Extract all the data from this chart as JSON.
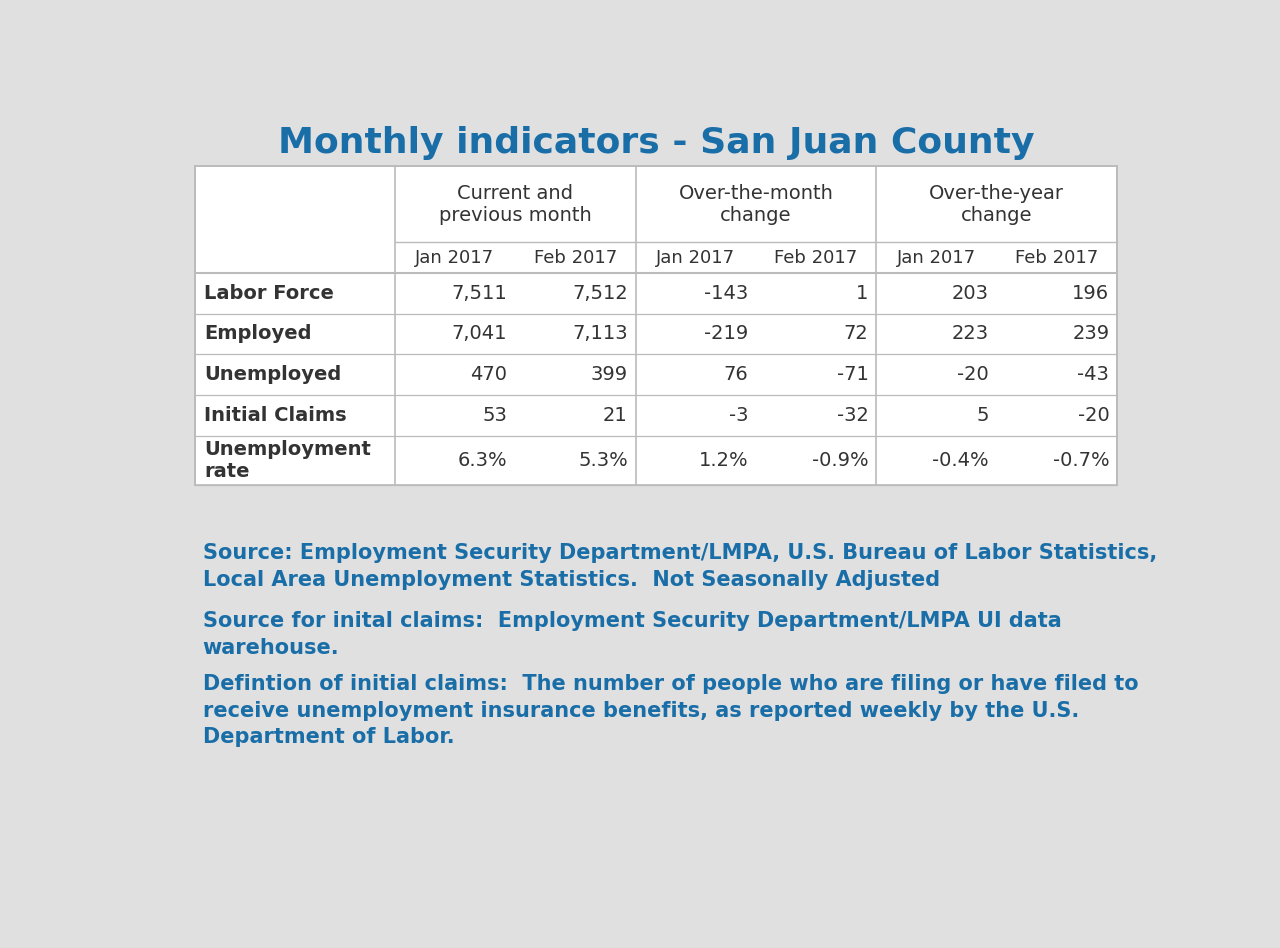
{
  "title": "Monthly indicators - San Juan County",
  "title_color": "#1A6EA8",
  "background_color": "#E0E0E0",
  "col_groups": [
    "Current and\nprevious month",
    "Over-the-month\nchange",
    "Over-the-year\nchange"
  ],
  "col_subheaders": [
    "Jan 2017",
    "Feb 2017",
    "Jan 2017",
    "Feb 2017",
    "Jan 2017",
    "Feb 2017"
  ],
  "row_labels": [
    "Labor Force",
    "Employed",
    "Unemployed",
    "Initial Claims",
    "Unemployment\nrate"
  ],
  "table_data": [
    [
      "7,511",
      "7,512",
      "-143",
      "1",
      "203",
      "196"
    ],
    [
      "7,041",
      "7,113",
      "-219",
      "72",
      "223",
      "239"
    ],
    [
      "470",
      "399",
      "76",
      "-71",
      "-20",
      "-43"
    ],
    [
      "53",
      "21",
      "-3",
      "-32",
      "5",
      "-20"
    ],
    [
      "6.3%",
      "5.3%",
      "1.2%",
      "-0.9%",
      "-0.4%",
      "-0.7%"
    ]
  ],
  "footer_texts": [
    "Source: Employment Security Department/LMPA, U.S. Bureau of Labor Statistics,\nLocal Area Unemployment Statistics.  Not Seasonally Adjusted",
    "Source for inital claims:  Employment Security Department/LMPA UI data\nwarehouse.",
    "Defintion of initial claims:  The number of people who are filing or have filed to\nreceive unemployment insurance benefits, as reported weekly by the U.S.\nDepartment of Labor."
  ],
  "footer_color": "#1A6EA8",
  "table_border_color": "#BBBBBB",
  "data_text_color": "#333333",
  "label_text_color": "#333333"
}
